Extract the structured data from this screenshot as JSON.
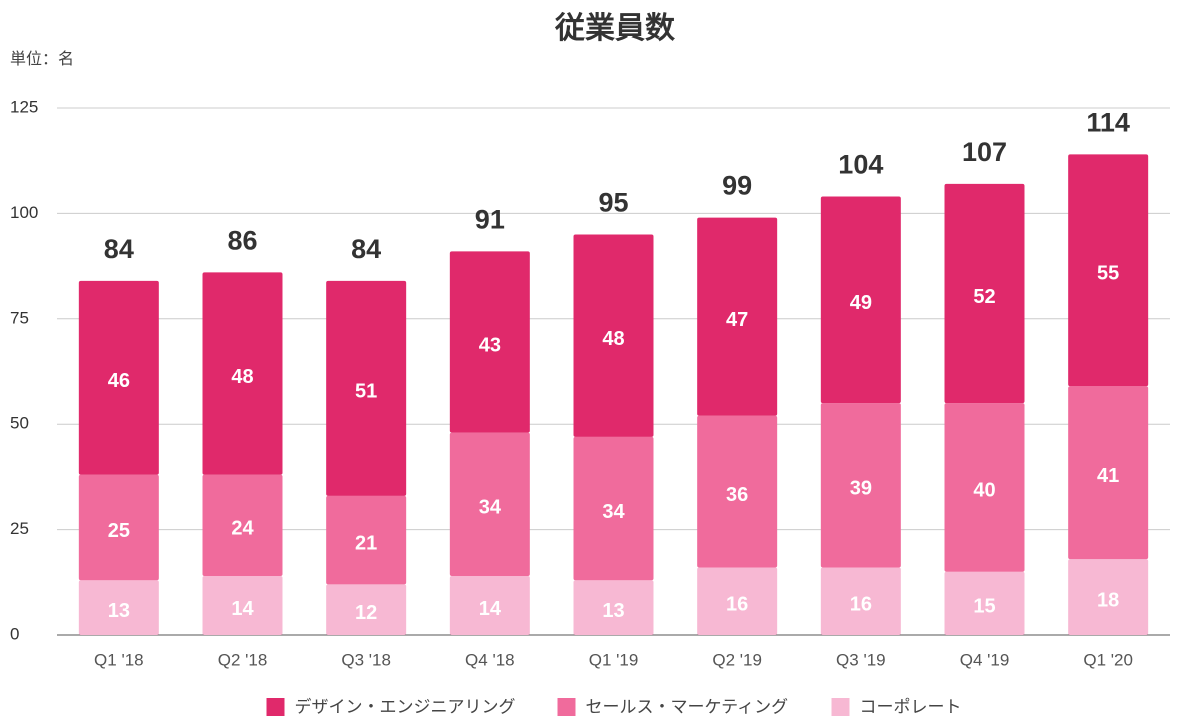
{
  "chart_data": {
    "type": "stacked_bar",
    "title": "従業員数",
    "unit_label": "単位：名",
    "categories": [
      "Q1 '18",
      "Q2 '18",
      "Q3 '18",
      "Q4 '18",
      "Q1 '19",
      "Q2 '19",
      "Q3 '19",
      "Q4 '19",
      "Q1 '20"
    ],
    "series": [
      {
        "name": "デザイン・エンジニアリング",
        "color": "#e0296b",
        "values": [
          46,
          48,
          51,
          43,
          48,
          47,
          49,
          52,
          55
        ]
      },
      {
        "name": "セールス・マーケティング",
        "color": "#f06b9c",
        "values": [
          25,
          24,
          21,
          34,
          34,
          36,
          39,
          40,
          41
        ]
      },
      {
        "name": "コーポレート",
        "color": "#f7b8d3",
        "values": [
          13,
          14,
          12,
          14,
          13,
          16,
          16,
          15,
          18
        ]
      }
    ],
    "totals": [
      84,
      86,
      84,
      91,
      95,
      99,
      104,
      107,
      114
    ],
    "ylim": [
      0,
      125
    ],
    "yticks": [
      0,
      25,
      50,
      75,
      100,
      125
    ],
    "grid": true,
    "legend": "bottom"
  }
}
